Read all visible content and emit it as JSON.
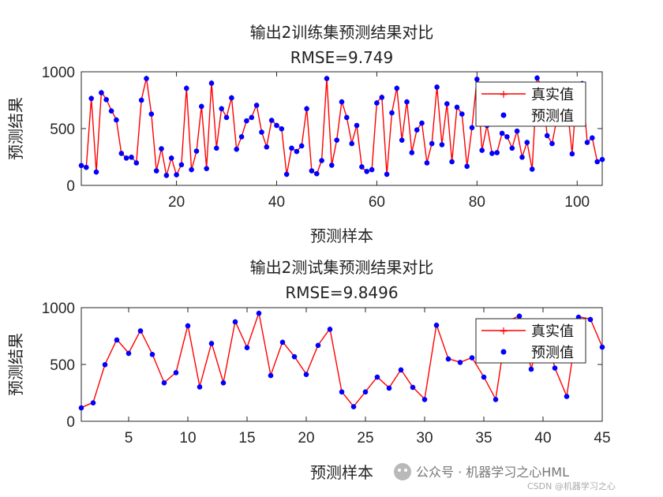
{
  "watermark": {
    "text": "公众号 · 机器学习之心HML",
    "csdn": "CSDN @机器学习之心"
  },
  "colors": {
    "true_line": "#ff0000",
    "pred_marker": "#0000ff",
    "axis": "#262626"
  },
  "chart_data": [
    {
      "type": "line",
      "title": "输出2训练集预测结果对比",
      "subtitle": "RMSE=9.749",
      "xlabel": "预测样本",
      "ylabel": "预测结果",
      "xlim": [
        1,
        105
      ],
      "ylim": [
        0,
        1000
      ],
      "xticks": [
        20,
        40,
        60,
        80,
        100
      ],
      "yticks": [
        0,
        500,
        1000
      ],
      "legend": "top-right",
      "x": [
        1,
        2,
        3,
        4,
        5,
        6,
        7,
        8,
        9,
        10,
        11,
        12,
        13,
        14,
        15,
        16,
        17,
        18,
        19,
        20,
        21,
        22,
        23,
        24,
        25,
        26,
        27,
        28,
        29,
        30,
        31,
        32,
        33,
        34,
        35,
        36,
        37,
        38,
        39,
        40,
        41,
        42,
        43,
        44,
        45,
        46,
        47,
        48,
        49,
        50,
        51,
        52,
        53,
        54,
        55,
        56,
        57,
        58,
        59,
        60,
        61,
        62,
        63,
        64,
        65,
        66,
        67,
        68,
        69,
        70,
        71,
        72,
        73,
        74,
        75,
        76,
        77,
        78,
        79,
        80,
        81,
        82,
        83,
        84,
        85,
        86,
        87,
        88,
        89,
        90,
        91,
        92,
        93,
        94,
        95,
        96,
        97,
        98,
        99,
        100,
        101,
        102,
        103,
        104,
        105
      ],
      "series": [
        {
          "name": "真实值",
          "values": [
            180,
            160,
            770,
            115,
            820,
            760,
            660,
            580,
            280,
            245,
            250,
            200,
            755,
            945,
            630,
            125,
            325,
            85,
            245,
            90,
            185,
            860,
            135,
            300,
            700,
            150,
            905,
            330,
            680,
            600,
            775,
            315,
            430,
            570,
            600,
            710,
            470,
            340,
            575,
            530,
            500,
            95,
            330,
            300,
            350,
            680,
            125,
            100,
            220,
            945,
            175,
            400,
            740,
            600,
            370,
            530,
            160,
            120,
            135,
            730,
            780,
            95,
            640,
            860,
            400,
            740,
            290,
            490,
            550,
            200,
            370,
            870,
            360,
            720,
            210,
            690,
            630,
            165,
            510,
            940,
            310,
            530,
            285,
            290,
            460,
            430,
            330,
            480,
            250,
            380,
            140,
            950,
            860,
            440,
            370,
            600,
            840,
            700,
            280,
            880,
            900,
            380,
            420,
            210,
            230
          ]
        },
        {
          "name": "预测值",
          "values": [
            175,
            158,
            765,
            118,
            815,
            755,
            655,
            576,
            282,
            240,
            248,
            198,
            750,
            940,
            628,
            128,
            322,
            88,
            240,
            93,
            182,
            855,
            138,
            302,
            695,
            148,
            900,
            328,
            675,
            598,
            770,
            318,
            428,
            568,
            598,
            705,
            468,
            338,
            572,
            528,
            498,
            98,
            328,
            298,
            348,
            675,
            128,
            103,
            218,
            940,
            178,
            398,
            735,
            598,
            368,
            528,
            163,
            123,
            138,
            725,
            775,
            98,
            638,
            855,
            398,
            735,
            288,
            488,
            548,
            198,
            368,
            865,
            358,
            718,
            208,
            688,
            628,
            168,
            508,
            935,
            308,
            528,
            282,
            288,
            458,
            428,
            328,
            478,
            248,
            378,
            143,
            945,
            855,
            438,
            368,
            598,
            835,
            698,
            278,
            875,
            895,
            378,
            418,
            208,
            228
          ]
        }
      ]
    },
    {
      "type": "line",
      "title": "输出2测试集预测结果对比",
      "subtitle": "RMSE=9.8496",
      "xlabel": "预测样本",
      "ylabel": "预测结果",
      "xlim": [
        1,
        45
      ],
      "ylim": [
        0,
        1000
      ],
      "xticks": [
        5,
        10,
        15,
        20,
        25,
        30,
        35,
        40,
        45
      ],
      "yticks": [
        0,
        500,
        1000
      ],
      "legend": "top-right",
      "x": [
        1,
        2,
        3,
        4,
        5,
        6,
        7,
        8,
        9,
        10,
        11,
        12,
        13,
        14,
        15,
        16,
        17,
        18,
        19,
        20,
        21,
        22,
        23,
        24,
        25,
        26,
        27,
        28,
        29,
        30,
        31,
        32,
        33,
        34,
        35,
        36,
        37,
        38,
        39,
        40,
        41,
        42,
        43,
        44,
        45
      ],
      "series": [
        {
          "name": "真实值",
          "values": [
            120,
            165,
            500,
            720,
            600,
            800,
            590,
            340,
            430,
            845,
            305,
            690,
            340,
            880,
            650,
            955,
            405,
            700,
            570,
            415,
            670,
            815,
            260,
            130,
            260,
            390,
            295,
            455,
            300,
            195,
            850,
            550,
            520,
            560,
            390,
            195,
            880,
            930,
            460,
            880,
            470,
            220,
            920,
            900,
            655
          ]
        },
        {
          "name": "预测值",
          "values": [
            118,
            162,
            498,
            715,
            598,
            795,
            588,
            338,
            428,
            840,
            302,
            685,
            338,
            875,
            648,
            950,
            402,
            695,
            568,
            412,
            668,
            810,
            258,
            128,
            258,
            388,
            292,
            452,
            298,
            192,
            845,
            548,
            518,
            558,
            388,
            192,
            875,
            925,
            458,
            875,
            468,
            218,
            915,
            895,
            652
          ]
        }
      ]
    }
  ]
}
